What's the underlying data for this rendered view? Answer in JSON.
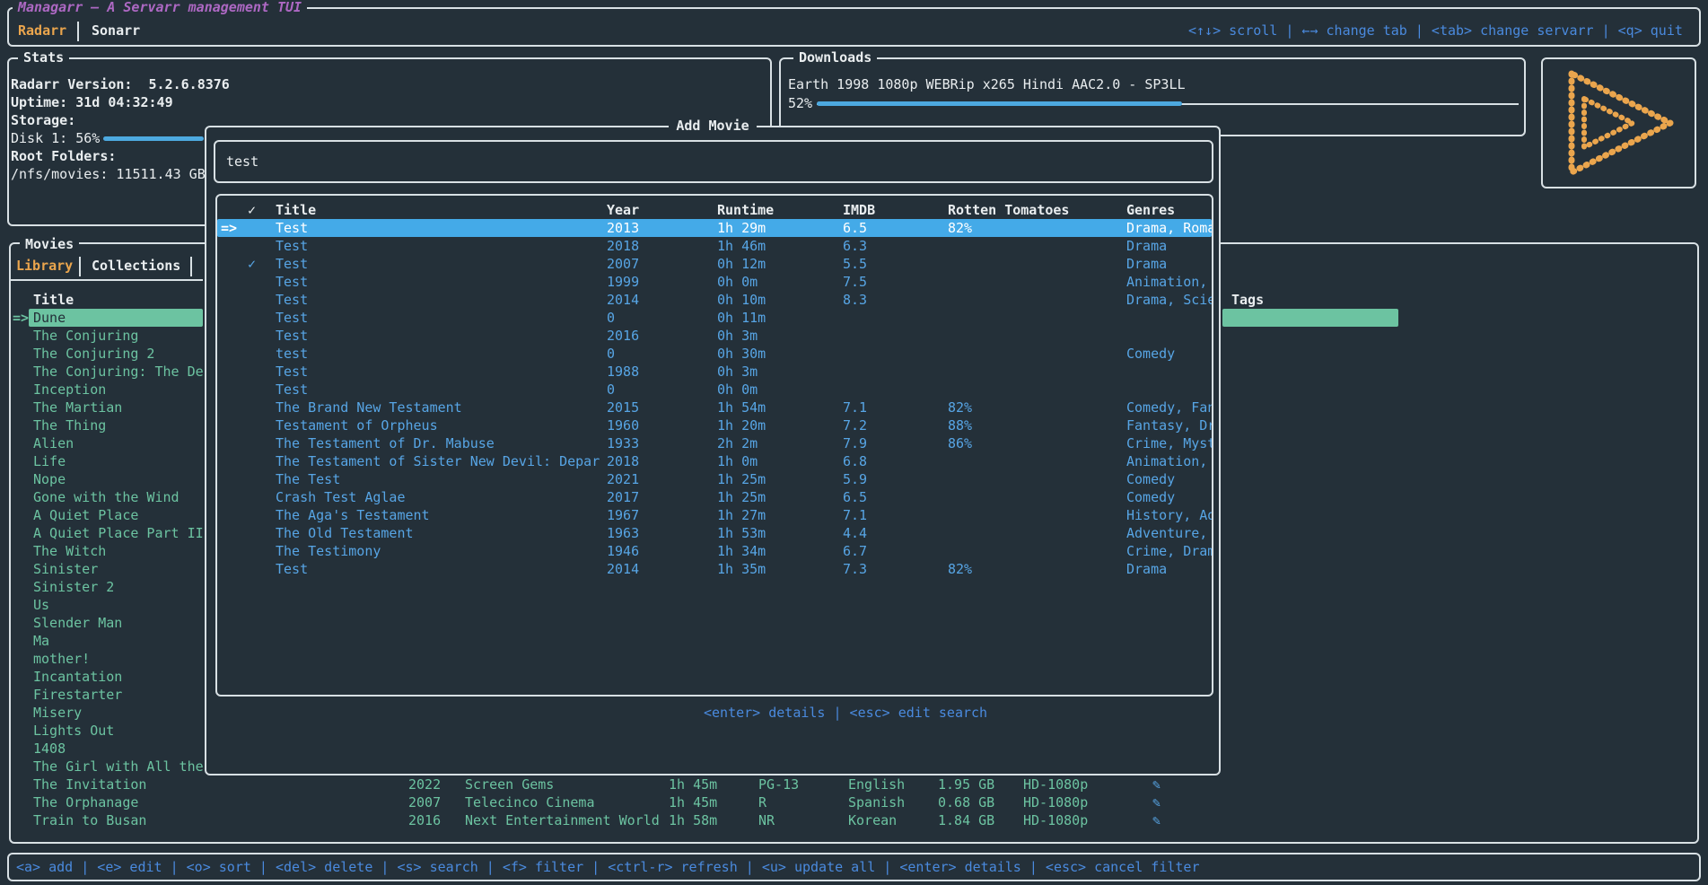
{
  "colors": {
    "background": "#243039",
    "border": "#d8e0e4",
    "text_primary": "#e9edef",
    "text_blue": "#57a5e5",
    "help_blue": "#4a8ade",
    "selection_blue": "#44aae8",
    "accent_teal": "#6cc3a1",
    "accent_orange": "#eaa54d",
    "brand_purple": "#ad68c3",
    "progress_blue": "#4da9e0"
  },
  "app": {
    "title": "Managarr – A Servarr management TUI",
    "tabs": [
      {
        "label": "Radarr"
      },
      {
        "label": "Sonarr"
      }
    ],
    "tab_separator": "|",
    "global_help": "<↑↓> scroll | ←→ change tab | <tab> change servarr | <q> quit"
  },
  "stats": {
    "panel_title": "Stats",
    "version_line": "Radarr Version:  5.2.6.8376",
    "uptime_line": "Uptime: 31d 04:32:49",
    "storage_label": "Storage:",
    "disk_line": "Disk 1: 56%",
    "disk_percent": 56,
    "root_folders_label": "Root Folders:",
    "root_folder_line": "/nfs/movies: 11511.43 GB"
  },
  "downloads": {
    "panel_title": "Downloads",
    "item_title": "Earth 1998 1080p WEBRip x265 Hindi AAC2.0 - SP3LL",
    "percent_label": "52%",
    "percent": 52
  },
  "movies_panel": {
    "panel_title": "Movies",
    "tabs": [
      {
        "label": "Library"
      },
      {
        "label": "Collections"
      }
    ],
    "tab_separator": "|",
    "list_header": "Title",
    "tags_header": "Tags",
    "selection_marker": "=>",
    "selected_index": 0,
    "items": [
      "Dune",
      "The Conjuring",
      "The Conjuring 2",
      "The Conjuring: The De",
      "Inception",
      "The Martian",
      "The Thing",
      "Alien",
      "Life",
      "Nope",
      "Gone with the Wind",
      "A Quiet Place",
      "A Quiet Place Part II",
      "The Witch",
      "Sinister",
      "Sinister 2",
      "Us",
      "Slender Man",
      "Ma",
      "mother!",
      "Incantation",
      "Firestarter",
      "Misery",
      "Lights Out",
      "1408",
      "The Girl with All the",
      "The Invitation",
      "The Orphanage",
      "Train to Busan"
    ],
    "detail_rows": [
      {
        "year": "2022",
        "studio": "Screen Gems",
        "runtime": "1h 45m",
        "certification": "PG-13",
        "language": "English",
        "size": "1.95 GB",
        "quality": "HD-1080p",
        "edit_icon": "✎"
      },
      {
        "year": "2007",
        "studio": "Telecinco Cinema",
        "runtime": "1h 45m",
        "certification": "R",
        "language": "Spanish",
        "size": "0.68 GB",
        "quality": "HD-1080p",
        "edit_icon": "✎"
      },
      {
        "year": "2016",
        "studio": "Next Entertainment World",
        "runtime": "1h 58m",
        "certification": "NR",
        "language": "Korean",
        "size": "1.84 GB",
        "quality": "HD-1080p",
        "edit_icon": "✎"
      }
    ]
  },
  "add_movie_modal": {
    "title": "Add Movie",
    "search_value": "test",
    "help": "<enter> details | <esc> edit search",
    "selection_marker": "=>",
    "checkmark": "✓",
    "table": {
      "headers": [
        "✓",
        "Title",
        "Year",
        "Runtime",
        "IMDB",
        "Rotten Tomatoes",
        "Genres"
      ],
      "rows": [
        {
          "selected": true,
          "checked": false,
          "title": "Test",
          "year": "2013",
          "runtime": "1h 29m",
          "imdb": "6.5",
          "rotten_tomatoes": "82%",
          "genres": "Drama, Romance"
        },
        {
          "selected": false,
          "checked": false,
          "title": "Test",
          "year": "2018",
          "runtime": "1h 46m",
          "imdb": "6.3",
          "rotten_tomatoes": "",
          "genres": "Drama"
        },
        {
          "selected": false,
          "checked": true,
          "title": "Test",
          "year": "2007",
          "runtime": "0h 12m",
          "imdb": "5.5",
          "rotten_tomatoes": "",
          "genres": "Drama"
        },
        {
          "selected": false,
          "checked": false,
          "title": "Test",
          "year": "1999",
          "runtime": "0h 0m",
          "imdb": "7.5",
          "rotten_tomatoes": "",
          "genres": "Animation, Drama"
        },
        {
          "selected": false,
          "checked": false,
          "title": "Test",
          "year": "2014",
          "runtime": "0h 10m",
          "imdb": "8.3",
          "rotten_tomatoes": "",
          "genres": "Drama, Science Fiction"
        },
        {
          "selected": false,
          "checked": false,
          "title": "Test",
          "year": "0",
          "runtime": "0h 11m",
          "imdb": "",
          "rotten_tomatoes": "",
          "genres": ""
        },
        {
          "selected": false,
          "checked": false,
          "title": "Test",
          "year": "2016",
          "runtime": "0h 3m",
          "imdb": "",
          "rotten_tomatoes": "",
          "genres": ""
        },
        {
          "selected": false,
          "checked": false,
          "title": "test",
          "year": "0",
          "runtime": "0h 30m",
          "imdb": "",
          "rotten_tomatoes": "",
          "genres": "Comedy"
        },
        {
          "selected": false,
          "checked": false,
          "title": "Test",
          "year": "1988",
          "runtime": "0h 3m",
          "imdb": "",
          "rotten_tomatoes": "",
          "genres": ""
        },
        {
          "selected": false,
          "checked": false,
          "title": "Test",
          "year": "0",
          "runtime": "0h 0m",
          "imdb": "",
          "rotten_tomatoes": "",
          "genres": ""
        },
        {
          "selected": false,
          "checked": false,
          "title": "The Brand New Testament",
          "year": "2015",
          "runtime": "1h 54m",
          "imdb": "7.1",
          "rotten_tomatoes": "82%",
          "genres": "Comedy, Fantasy"
        },
        {
          "selected": false,
          "checked": false,
          "title": "Testament of Orpheus",
          "year": "1960",
          "runtime": "1h 20m",
          "imdb": "7.2",
          "rotten_tomatoes": "88%",
          "genres": "Fantasy, Drama"
        },
        {
          "selected": false,
          "checked": false,
          "title": "The Testament of Dr. Mabuse",
          "year": "1933",
          "runtime": "2h 2m",
          "imdb": "7.9",
          "rotten_tomatoes": "86%",
          "genres": "Crime, Mystery, Thriller"
        },
        {
          "selected": false,
          "checked": false,
          "title": "The Testament of Sister New Devil: Depar",
          "year": "2018",
          "runtime": "1h 0m",
          "imdb": "6.8",
          "rotten_tomatoes": "",
          "genres": "Animation, Action, Romance"
        },
        {
          "selected": false,
          "checked": false,
          "title": "The Test",
          "year": "2021",
          "runtime": "1h 25m",
          "imdb": "5.9",
          "rotten_tomatoes": "",
          "genres": "Comedy"
        },
        {
          "selected": false,
          "checked": false,
          "title": "Crash Test Aglae",
          "year": "2017",
          "runtime": "1h 25m",
          "imdb": "6.5",
          "rotten_tomatoes": "",
          "genres": "Comedy"
        },
        {
          "selected": false,
          "checked": false,
          "title": "The Aga's Testament",
          "year": "1967",
          "runtime": "1h 27m",
          "imdb": "7.1",
          "rotten_tomatoes": "",
          "genres": "History, Adventure"
        },
        {
          "selected": false,
          "checked": false,
          "title": "The Old Testament",
          "year": "1963",
          "runtime": "1h 53m",
          "imdb": "4.4",
          "rotten_tomatoes": "",
          "genres": "Adventure, History, Drama"
        },
        {
          "selected": false,
          "checked": false,
          "title": "The Testimony",
          "year": "1946",
          "runtime": "1h 34m",
          "imdb": "6.7",
          "rotten_tomatoes": "",
          "genres": "Crime, Drama"
        },
        {
          "selected": false,
          "checked": false,
          "title": "Test",
          "year": "2014",
          "runtime": "1h 35m",
          "imdb": "7.3",
          "rotten_tomatoes": "82%",
          "genres": "Drama"
        }
      ]
    }
  },
  "bottom_help": {
    "text": "<a> add | <e> edit | <o> sort | <del> delete | <s> search | <f> filter | <ctrl-r> refresh | <u> update all | <enter> details | <esc> cancel filter"
  }
}
